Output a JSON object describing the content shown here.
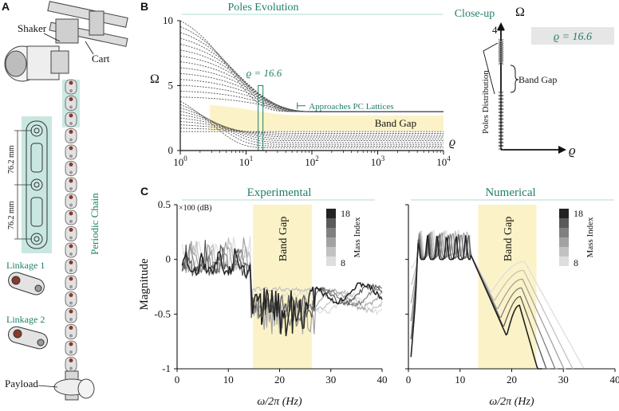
{
  "colors": {
    "accent_green": "#1f7f6a",
    "band_fill": "#fbf3c7",
    "teal_fill": "#bfe3dc",
    "black": "#111111"
  },
  "panel_labels": {
    "a": "A",
    "b": "B",
    "c": "C"
  },
  "panel_a": {
    "shaker": "Shaker",
    "cart": "Cart",
    "periodic_chain": "Periodic Chain",
    "dim_top": "76.2 mm",
    "dim_bottom": "76.2 mm",
    "linkage1": "Linkage 1",
    "linkage2": "Linkage 2",
    "payload": "Payload"
  },
  "chart_data": [
    {
      "type": "line",
      "id": "poles_evolution",
      "title": "Poles Evolution",
      "xlabel": "ϱ",
      "ylabel": "Ω",
      "xscale": "log",
      "xlim": [
        1,
        10000
      ],
      "ylim": [
        0,
        10
      ],
      "xticks": [
        "10^0",
        "10^1",
        "10^2",
        "10^3",
        "10^4"
      ],
      "yticks": [
        "0",
        "5",
        "10"
      ],
      "band_gap": {
        "label": "Band Gap",
        "lower": 1.5,
        "upper": 2.7
      },
      "marker": {
        "label": "ϱ = 16.6",
        "x": 16.6
      },
      "annotation": "Approaches PC Lattices",
      "upper_asymptote": 3.0,
      "n_upper_curves": 14,
      "n_lower_curves": 10
    },
    {
      "type": "scatter",
      "id": "close_up",
      "title": "Close-up",
      "axis_label_y": "Ω",
      "axis_label_x": "ϱ",
      "ytick": "4",
      "rho_value": "ϱ = 16.6",
      "band_gap": "Band Gap",
      "poles_label": "Poles Distribution"
    },
    {
      "type": "line",
      "id": "experimental",
      "title": "Experimental",
      "ylabel": "Magnitude",
      "y_unit": "×100 (dB)",
      "xlabel": "ω/2π (Hz)",
      "xlim": [
        0,
        40
      ],
      "ylim": [
        -1,
        0.5
      ],
      "xticks": [
        "0",
        "10",
        "20",
        "30",
        "40"
      ],
      "yticks": [
        "0.5",
        "0",
        "-0.5",
        "-1"
      ],
      "band_gap": {
        "label": "Band Gap",
        "from": 14.8,
        "to": 26.3
      },
      "legend": {
        "title": "Mass Index",
        "max": "18",
        "min": "8"
      },
      "series_count": 6
    },
    {
      "type": "line",
      "id": "numerical",
      "title": "Numerical",
      "xlabel": "ω/2π (Hz)",
      "xlim": [
        0,
        40
      ],
      "ylim": [
        -1,
        0.5
      ],
      "xticks": [
        "0",
        "10",
        "20",
        "30",
        "40"
      ],
      "band_gap": {
        "label": "Band Gap",
        "from": 13.5,
        "to": 24.8
      },
      "legend": {
        "title": "Mass Index",
        "max": "18",
        "min": "8"
      },
      "series_count": 6
    }
  ]
}
